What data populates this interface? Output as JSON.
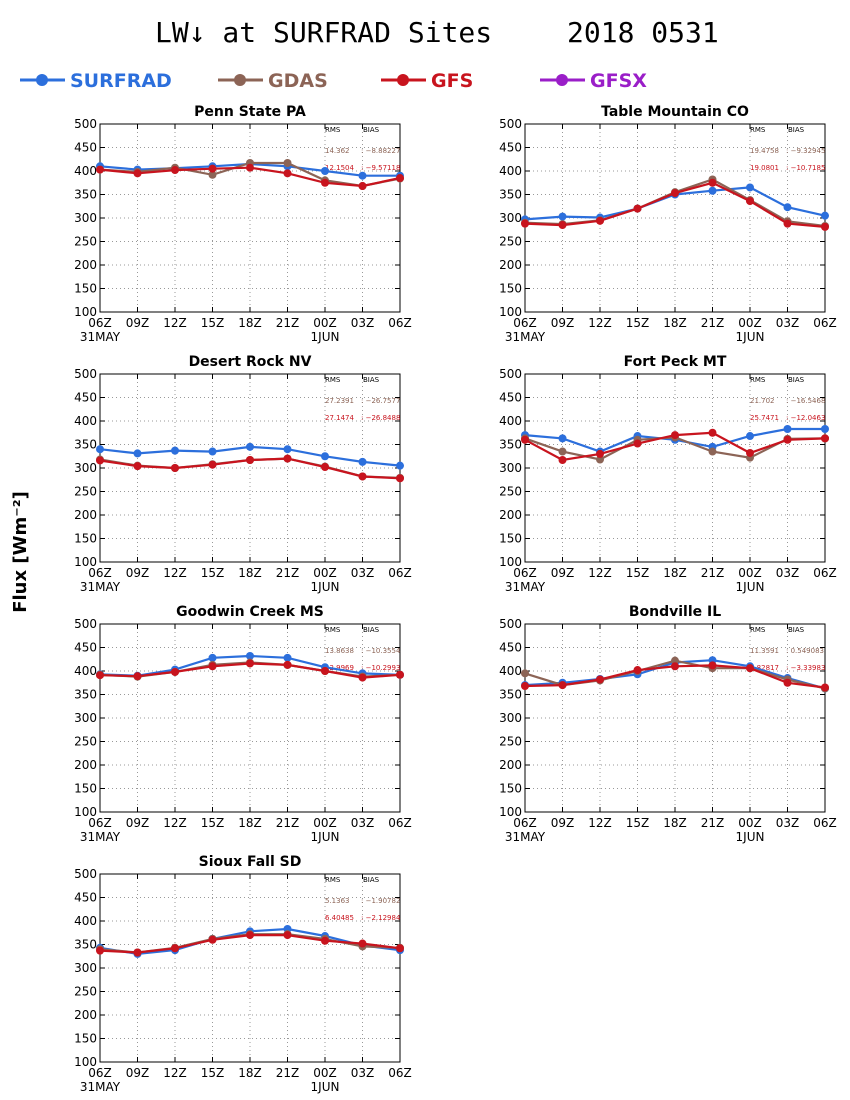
{
  "title": "LW↓ at SURFRAD Sites",
  "date": "2018 0531",
  "ylabel": "Flux [Wm⁻²]",
  "colors": {
    "SURFRAD": "#2c6fdc",
    "GDAS": "#8c6456",
    "GFS": "#c8141e",
    "GFSX": "#9a1ec8"
  },
  "legend": [
    {
      "name": "SURFRAD",
      "color": "#2c6fdc"
    },
    {
      "name": "GDAS",
      "color": "#8c6456"
    },
    {
      "name": "GFS",
      "color": "#c8141e"
    },
    {
      "name": "GFSX",
      "color": "#9a1ec8"
    }
  ],
  "stat_headers": {
    "rms": "RMS",
    "bias": "BIAS"
  },
  "chart_data": [
    {
      "type": "line",
      "title": "Penn State PA",
      "x": [
        "06Z",
        "09Z",
        "12Z",
        "15Z",
        "18Z",
        "21Z",
        "00Z",
        "03Z",
        "06Z"
      ],
      "date_labels": [
        "31MAY",
        "1JUN"
      ],
      "ylim": [
        100,
        500
      ],
      "yticks": [
        100,
        150,
        200,
        250,
        300,
        350,
        400,
        450,
        500
      ],
      "grid": true,
      "stats": [
        {
          "series": "GDAS",
          "rms": "14.362",
          "bias": "−8.88227"
        },
        {
          "series": "GFS",
          "rms": "12.1504",
          "bias": "−9.57118"
        }
      ],
      "series": [
        {
          "name": "SURFRAD",
          "values": [
            410,
            403,
            406,
            410,
            415,
            410,
            400,
            390,
            390
          ]
        },
        {
          "name": "GDAS",
          "values": [
            403,
            398,
            407,
            392,
            417,
            417,
            380,
            368,
            384
          ]
        },
        {
          "name": "GFS",
          "values": [
            403,
            395,
            402,
            405,
            407,
            395,
            375,
            368,
            385
          ]
        }
      ]
    },
    {
      "type": "line",
      "title": "Table Mountain CO",
      "x": [
        "06Z",
        "09Z",
        "12Z",
        "15Z",
        "18Z",
        "21Z",
        "00Z",
        "03Z",
        "06Z"
      ],
      "date_labels": [
        "31MAY",
        "1JUN"
      ],
      "ylim": [
        100,
        500
      ],
      "yticks": [
        100,
        150,
        200,
        250,
        300,
        350,
        400,
        450,
        500
      ],
      "grid": true,
      "stats": [
        {
          "series": "GDAS",
          "rms": "19.4758",
          "bias": "−9.32945"
        },
        {
          "series": "GFS",
          "rms": "19.0801",
          "bias": "−10.7185"
        }
      ],
      "series": [
        {
          "name": "SURFRAD",
          "values": [
            297,
            303,
            301,
            320,
            350,
            358,
            365,
            323,
            305
          ]
        },
        {
          "name": "GDAS",
          "values": [
            290,
            287,
            295,
            320,
            355,
            382,
            338,
            293,
            283
          ]
        },
        {
          "name": "GFS",
          "values": [
            288,
            285,
            294,
            320,
            353,
            375,
            336,
            288,
            281
          ]
        }
      ]
    },
    {
      "type": "line",
      "title": "Desert Rock NV",
      "x": [
        "06Z",
        "09Z",
        "12Z",
        "15Z",
        "18Z",
        "21Z",
        "00Z",
        "03Z",
        "06Z"
      ],
      "date_labels": [
        "31MAY",
        "1JUN"
      ],
      "ylim": [
        100,
        500
      ],
      "yticks": [
        100,
        150,
        200,
        250,
        300,
        350,
        400,
        450,
        500
      ],
      "grid": true,
      "stats": [
        {
          "series": "GDAS",
          "rms": "27.2391",
          "bias": "−26.7577"
        },
        {
          "series": "GFS",
          "rms": "27.1474",
          "bias": "−26.8488"
        }
      ],
      "series": [
        {
          "name": "SURFRAD",
          "values": [
            340,
            331,
            337,
            335,
            345,
            340,
            325,
            313,
            305
          ]
        },
        {
          "name": "GDAS",
          "values": [
            318,
            305,
            300,
            308,
            317,
            320,
            303,
            282,
            279
          ]
        },
        {
          "name": "GFS",
          "values": [
            316,
            304,
            300,
            307,
            317,
            320,
            302,
            282,
            278
          ]
        }
      ]
    },
    {
      "type": "line",
      "title": "Fort Peck MT",
      "x": [
        "06Z",
        "09Z",
        "12Z",
        "15Z",
        "18Z",
        "21Z",
        "00Z",
        "03Z",
        "06Z"
      ],
      "date_labels": [
        "31MAY",
        "1JUN"
      ],
      "ylim": [
        100,
        500
      ],
      "yticks": [
        100,
        150,
        200,
        250,
        300,
        350,
        400,
        450,
        500
      ],
      "grid": true,
      "stats": [
        {
          "series": "GDAS",
          "rms": "21.702",
          "bias": "−16.5468"
        },
        {
          "series": "GFS",
          "rms": "25.7471",
          "bias": "−12.0463"
        }
      ],
      "series": [
        {
          "name": "SURFRAD",
          "values": [
            370,
            363,
            335,
            368,
            360,
            345,
            368,
            383,
            383
          ]
        },
        {
          "name": "GDAS",
          "values": [
            363,
            335,
            318,
            360,
            365,
            335,
            322,
            362,
            363
          ]
        },
        {
          "name": "GFS",
          "values": [
            360,
            317,
            330,
            352,
            370,
            375,
            332,
            360,
            363
          ]
        }
      ]
    },
    {
      "type": "line",
      "title": "Goodwin Creek MS",
      "x": [
        "06Z",
        "09Z",
        "12Z",
        "15Z",
        "18Z",
        "21Z",
        "00Z",
        "03Z",
        "06Z"
      ],
      "date_labels": [
        "31MAY",
        "1JUN"
      ],
      "ylim": [
        100,
        500
      ],
      "yticks": [
        100,
        150,
        200,
        250,
        300,
        350,
        400,
        450,
        500
      ],
      "grid": true,
      "stats": [
        {
          "series": "GDAS",
          "rms": "13.8638",
          "bias": "−10.3554"
        },
        {
          "series": "GFS",
          "rms": "12.9969",
          "bias": "−10.2993"
        }
      ],
      "series": [
        {
          "name": "SURFRAD",
          "values": [
            393,
            390,
            403,
            428,
            432,
            428,
            408,
            395,
            392
          ]
        },
        {
          "name": "GDAS",
          "values": [
            392,
            388,
            398,
            413,
            418,
            413,
            400,
            388,
            392
          ]
        },
        {
          "name": "GFS",
          "values": [
            391,
            389,
            398,
            410,
            416,
            413,
            400,
            386,
            392
          ]
        }
      ]
    },
    {
      "type": "line",
      "title": "Bondville IL",
      "x": [
        "06Z",
        "09Z",
        "12Z",
        "15Z",
        "18Z",
        "21Z",
        "00Z",
        "03Z",
        "06Z"
      ],
      "date_labels": [
        "31MAY",
        "1JUN"
      ],
      "ylim": [
        100,
        500
      ],
      "yticks": [
        100,
        150,
        200,
        250,
        300,
        350,
        400,
        450,
        500
      ],
      "grid": true,
      "stats": [
        {
          "series": "GDAS",
          "rms": "11.3591",
          "bias": "0.549083"
        },
        {
          "series": "GFS",
          "rms": "8.82817",
          "bias": "−3.33983"
        }
      ],
      "series": [
        {
          "name": "SURFRAD",
          "values": [
            370,
            375,
            383,
            393,
            418,
            423,
            410,
            385,
            363
          ]
        },
        {
          "name": "GDAS",
          "values": [
            395,
            370,
            380,
            400,
            422,
            406,
            406,
            382,
            363
          ]
        },
        {
          "name": "GFS",
          "values": [
            368,
            370,
            382,
            402,
            410,
            412,
            406,
            375,
            365
          ]
        }
      ]
    },
    {
      "type": "line",
      "title": "Sioux Fall SD",
      "x": [
        "06Z",
        "09Z",
        "12Z",
        "15Z",
        "18Z",
        "21Z",
        "00Z",
        "03Z",
        "06Z"
      ],
      "date_labels": [
        "31MAY",
        "1JUN"
      ],
      "ylim": [
        100,
        500
      ],
      "yticks": [
        100,
        150,
        200,
        250,
        300,
        350,
        400,
        450,
        500
      ],
      "grid": true,
      "stats": [
        {
          "series": "GDAS",
          "rms": "5.1363",
          "bias": "−1.90782"
        },
        {
          "series": "GFS",
          "rms": "6.40485",
          "bias": "−2.12984"
        }
      ],
      "series": [
        {
          "name": "SURFRAD",
          "values": [
            343,
            330,
            338,
            362,
            378,
            383,
            368,
            348,
            338
          ]
        },
        {
          "name": "GDAS",
          "values": [
            340,
            333,
            343,
            362,
            372,
            372,
            362,
            346,
            343
          ]
        },
        {
          "name": "GFS",
          "values": [
            337,
            333,
            342,
            360,
            370,
            370,
            358,
            352,
            342
          ]
        }
      ]
    }
  ]
}
